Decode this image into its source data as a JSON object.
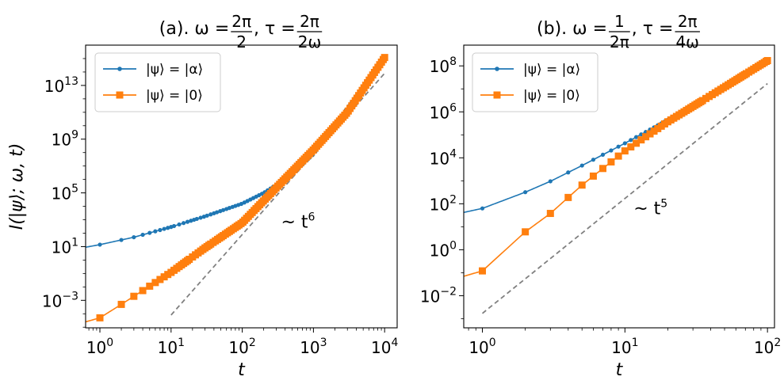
{
  "chart_data": [
    {
      "type": "line",
      "panel": "a",
      "title": {
        "prefix": "(a). ω = ",
        "omega_num": "2π",
        "omega_den": "2",
        "sep": ", τ = ",
        "tau_num": "2π",
        "tau_den": "2ω"
      },
      "xscale": "log",
      "yscale": "log",
      "xlim": [
        0.63,
        15000
      ],
      "ylim": [
        9e-06,
        1e+16
      ],
      "xlabel": "t",
      "ylabel": "I(|ψ⟩; ω, t)",
      "xticks": [
        {
          "base": "10",
          "exp": "0",
          "value": 1
        },
        {
          "base": "10",
          "exp": "1",
          "value": 10
        },
        {
          "base": "10",
          "exp": "2",
          "value": 100
        },
        {
          "base": "10",
          "exp": "3",
          "value": 1000
        },
        {
          "base": "10",
          "exp": "4",
          "value": 10000
        }
      ],
      "yticks": [
        {
          "base": "10",
          "exp": "−3",
          "value": 0.001
        },
        {
          "base": "10",
          "exp": "1",
          "value": 10
        },
        {
          "base": "10",
          "exp": "5",
          "value": 100000
        },
        {
          "base": "10",
          "exp": "9",
          "value": 1000000000.0
        },
        {
          "base": "10",
          "exp": "13",
          "value": 10000000000000.0
        }
      ],
      "series": [
        {
          "name": "|ψ⟩ = |α⟩",
          "color": "#1f77b4",
          "marker": "circle",
          "t_max": 10000,
          "anchors": [
            [
              0.63,
              9
            ],
            [
              1,
              14
            ],
            [
              3,
              50
            ],
            [
              10,
              290
            ],
            [
              30,
              1800
            ],
            [
              100,
              16000
            ],
            [
              200,
              100000
            ],
            [
              300,
              400000
            ],
            [
              500,
              2600000
            ],
            [
              1000,
              75000000
            ],
            [
              10000,
              1200000000000000.0
            ]
          ]
        },
        {
          "name": "|ψ⟩ = |0⟩",
          "color": "#ff7f0e",
          "marker": "square",
          "t_max": 10000,
          "anchors": [
            [
              0.63,
              2.5e-05
            ],
            [
              1,
              5e-05
            ],
            [
              2,
              0.0005
            ],
            [
              3,
              0.002
            ],
            [
              10,
              0.12
            ],
            [
              30,
              8
            ],
            [
              100,
              600
            ],
            [
              300,
              240000
            ],
            [
              1000,
              160000000
            ],
            [
              3000,
              100000000000.0
            ],
            [
              10000,
              1200000000000000.0
            ]
          ]
        }
      ],
      "reference": {
        "label_prefix": "~ t",
        "label_exp": "6",
        "power": 6,
        "x_range": [
          10,
          10000
        ],
        "y_at_x_start": 8e-05,
        "color": "#808080",
        "annot_anchor": [
          350,
          250
        ]
      }
    },
    {
      "type": "line",
      "panel": "b",
      "title": {
        "prefix": "(b). ω = ",
        "omega_num": "1",
        "omega_den": "2π",
        "sep": ", τ = ",
        "tau_num": "2π",
        "tau_den": "4ω"
      },
      "xscale": "log",
      "yscale": "log",
      "xlim": [
        0.74,
        112
      ],
      "ylim": [
        0.0004,
        800000000.0
      ],
      "xlabel": "t",
      "ylabel": "",
      "xticks": [
        {
          "base": "10",
          "exp": "0",
          "value": 1
        },
        {
          "base": "10",
          "exp": "1",
          "value": 10
        },
        {
          "base": "10",
          "exp": "2",
          "value": 100
        }
      ],
      "yticks": [
        {
          "base": "10",
          "exp": "−2",
          "value": 0.01
        },
        {
          "base": "10",
          "exp": "0",
          "value": 1
        },
        {
          "base": "10",
          "exp": "2",
          "value": 100
        },
        {
          "base": "10",
          "exp": "4",
          "value": 10000
        },
        {
          "base": "10",
          "exp": "6",
          "value": 1000000
        },
        {
          "base": "10",
          "exp": "8",
          "value": 100000000
        }
      ],
      "series": [
        {
          "name": "|ψ⟩ = |α⟩",
          "color": "#1f77b4",
          "marker": "circle",
          "t_max": 100,
          "anchors": [
            [
              0.74,
              42
            ],
            [
              1,
              63
            ],
            [
              2,
              320
            ],
            [
              3,
              950
            ],
            [
              5,
              4600
            ],
            [
              10,
              43000
            ],
            [
              20,
              450000
            ],
            [
              50,
              12000000
            ],
            [
              100,
              170000000
            ]
          ]
        },
        {
          "name": "|ψ⟩ = |0⟩",
          "color": "#ff7f0e",
          "marker": "square",
          "t_max": 100,
          "anchors": [
            [
              0.74,
              0.07
            ],
            [
              1,
              0.12
            ],
            [
              2,
              6
            ],
            [
              3,
              38
            ],
            [
              5,
              650
            ],
            [
              10,
              20000
            ],
            [
              20,
              370000
            ],
            [
              50,
              12000000
            ],
            [
              100,
              170000000
            ]
          ]
        }
      ],
      "reference": {
        "label_prefix": "~ t",
        "label_exp": "5",
        "power": 5,
        "x_range": [
          1,
          100
        ],
        "y_at_x_start": 0.0017,
        "color": "#808080",
        "annot_anchor": [
          11.5,
          35
        ]
      }
    }
  ]
}
